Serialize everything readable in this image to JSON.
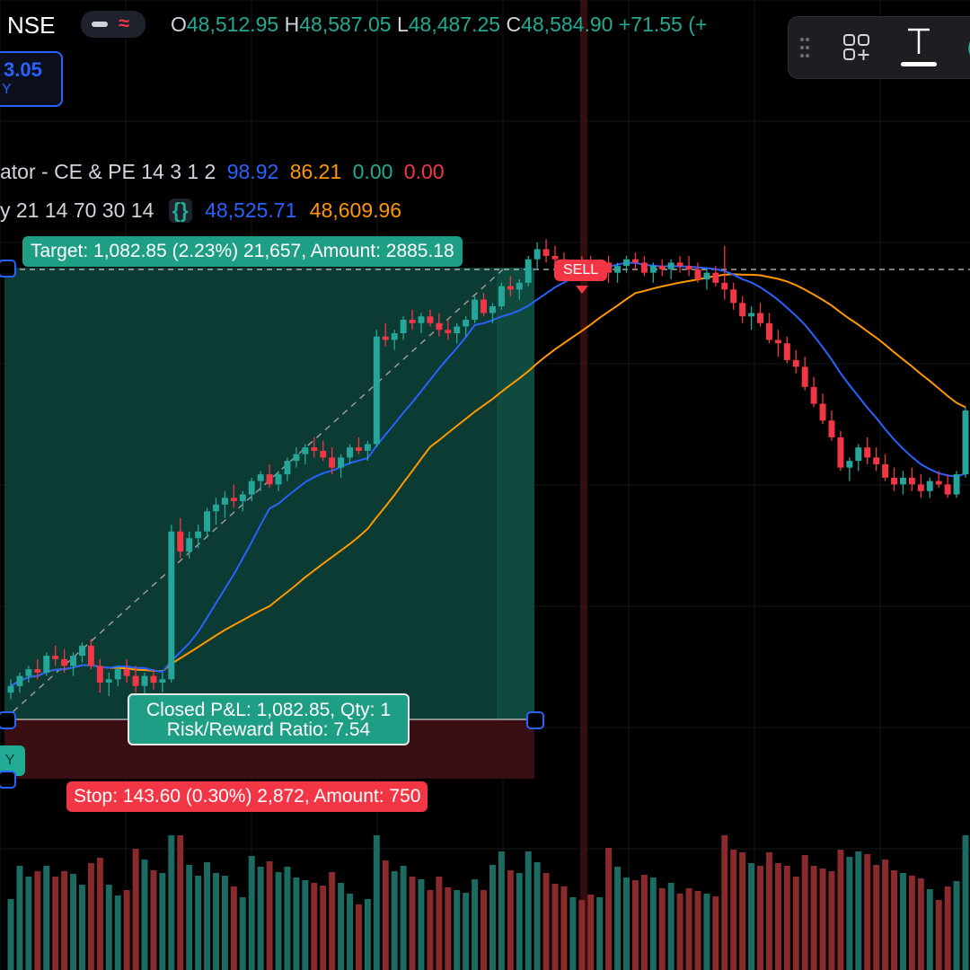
{
  "header": {
    "exchange": "NSE",
    "ohlc": [
      {
        "key": "O",
        "value": "48,512.95"
      },
      {
        "key": "H",
        "value": "48,587.05"
      },
      {
        "key": "L",
        "value": "48,487.25"
      },
      {
        "key": "C",
        "value": "48,584.90"
      }
    ],
    "change": "+71.55 (+",
    "price_tag_value": "3.05",
    "price_tag_sub": "Y"
  },
  "indicators": {
    "line1_name": "ator - CE & PE 14 3 1 2",
    "line1_values": [
      "98.92",
      "86.21",
      "0.00",
      "0.00"
    ],
    "line2_name": "y 21 14 70 30 14",
    "line2_braces": "{}",
    "line2_values": [
      "48,525.71",
      "48,609.96"
    ]
  },
  "colors": {
    "up": "#26a69a",
    "down": "#f23645",
    "blue": "#2962ff",
    "orange": "#ff9800",
    "green_value": "#22ab94",
    "red_value": "#f23645",
    "target_fill": "#0b3b32",
    "stop_fill": "#3a0f14"
  },
  "icons": [
    "drag-handle-icon",
    "add-layout-icon",
    "text-tool-icon",
    "chart-wave-icon",
    "fire-icon"
  ],
  "position": {
    "target_label": "Target: 1,082.85 (2.23%) 21,657, Amount: 2885.18",
    "pnl_label_line1": "Closed P&L: 1,082.85, Qty: 1",
    "pnl_label_line2": "Risk/Reward Ratio: 7.54",
    "stop_label": "Stop: 143.60 (0.30%) 2,872, Amount: 750",
    "buy_marker": "Y",
    "sell_marker": "SELL"
  },
  "chart_data": {
    "type": "candlestick",
    "symbol_exchange": "NSE",
    "series": [
      {
        "name": "price",
        "kind": "candles",
        "candles": [
          [
            47300,
            47340,
            47280,
            47320
          ],
          [
            47320,
            47360,
            47300,
            47350
          ],
          [
            47350,
            47380,
            47330,
            47370
          ],
          [
            47370,
            47400,
            47340,
            47360
          ],
          [
            47360,
            47420,
            47350,
            47410
          ],
          [
            47410,
            47440,
            47380,
            47400
          ],
          [
            47400,
            47430,
            47360,
            47380
          ],
          [
            47380,
            47420,
            47350,
            47410
          ],
          [
            47410,
            47450,
            47390,
            47440
          ],
          [
            47440,
            47460,
            47370,
            47380
          ],
          [
            47380,
            47400,
            47300,
            47330
          ],
          [
            47330,
            47360,
            47290,
            47340
          ],
          [
            47340,
            47380,
            47320,
            47370
          ],
          [
            47370,
            47400,
            47330,
            47350
          ],
          [
            47350,
            47380,
            47300,
            47320
          ],
          [
            47320,
            47360,
            47290,
            47350
          ],
          [
            47350,
            47370,
            47310,
            47330
          ],
          [
            47330,
            47360,
            47300,
            47340
          ],
          [
            47340,
            47800,
            47330,
            47780
          ],
          [
            47780,
            47820,
            47700,
            47720
          ],
          [
            47720,
            47780,
            47700,
            47760
          ],
          [
            47760,
            47800,
            47730,
            47780
          ],
          [
            47780,
            47850,
            47760,
            47840
          ],
          [
            47840,
            47880,
            47800,
            47860
          ],
          [
            47860,
            47900,
            47820,
            47880
          ],
          [
            47880,
            47920,
            47850,
            47870
          ],
          [
            47870,
            47900,
            47840,
            47890
          ],
          [
            47890,
            47940,
            47870,
            47930
          ],
          [
            47930,
            47960,
            47900,
            47950
          ],
          [
            47950,
            47980,
            47910,
            47920
          ],
          [
            47920,
            47960,
            47900,
            47950
          ],
          [
            47950,
            48000,
            47930,
            47990
          ],
          [
            47990,
            48030,
            47970,
            48010
          ],
          [
            48010,
            48040,
            47980,
            48030
          ],
          [
            48030,
            48060,
            48000,
            48020
          ],
          [
            48020,
            48050,
            47990,
            48000
          ],
          [
            48000,
            48030,
            47950,
            47970
          ],
          [
            47970,
            48010,
            47940,
            48000
          ],
          [
            48000,
            48040,
            47980,
            48030
          ],
          [
            48030,
            48060,
            48010,
            48020
          ],
          [
            48020,
            48050,
            47990,
            48040
          ],
          [
            48040,
            48380,
            48030,
            48360
          ],
          [
            48360,
            48400,
            48330,
            48350
          ],
          [
            48350,
            48380,
            48320,
            48370
          ],
          [
            48370,
            48420,
            48350,
            48410
          ],
          [
            48410,
            48440,
            48380,
            48400
          ],
          [
            48400,
            48430,
            48370,
            48420
          ],
          [
            48420,
            48440,
            48390,
            48400
          ],
          [
            48400,
            48430,
            48360,
            48380
          ],
          [
            48380,
            48410,
            48350,
            48370
          ],
          [
            48370,
            48400,
            48340,
            48390
          ],
          [
            48390,
            48420,
            48360,
            48410
          ],
          [
            48410,
            48480,
            48400,
            48470
          ],
          [
            48470,
            48490,
            48420,
            48430
          ],
          [
            48430,
            48460,
            48400,
            48450
          ],
          [
            48450,
            48520,
            48440,
            48510
          ],
          [
            48510,
            48540,
            48480,
            48500
          ],
          [
            48500,
            48530,
            48470,
            48520
          ],
          [
            48520,
            48600,
            48510,
            48590
          ],
          [
            48590,
            48640,
            48560,
            48620
          ],
          [
            48620,
            48650,
            48580,
            48600
          ],
          [
            48600,
            48630,
            48570,
            48590
          ],
          [
            48590,
            48610,
            48550,
            48560
          ],
          [
            48560,
            48590,
            48540,
            48580
          ],
          [
            48580,
            48600,
            48550,
            48570
          ],
          [
            48570,
            48600,
            48540,
            48560
          ],
          [
            48560,
            48590,
            48530,
            48580
          ],
          [
            48580,
            48600,
            48520,
            48550
          ],
          [
            48550,
            48580,
            48520,
            48570
          ],
          [
            48570,
            48600,
            48550,
            48590
          ],
          [
            48590,
            48610,
            48560,
            48580
          ],
          [
            48580,
            48600,
            48540,
            48550
          ],
          [
            48550,
            48580,
            48520,
            48570
          ],
          [
            48570,
            48590,
            48540,
            48560
          ],
          [
            48560,
            48590,
            48530,
            48580
          ],
          [
            48580,
            48600,
            48550,
            48570
          ],
          [
            48570,
            48600,
            48540,
            48560
          ],
          [
            48560,
            48580,
            48520,
            48530
          ],
          [
            48530,
            48560,
            48500,
            48550
          ],
          [
            48550,
            48570,
            48510,
            48520
          ],
          [
            48520,
            48630,
            48470,
            48500
          ],
          [
            48500,
            48520,
            48440,
            48460
          ],
          [
            48460,
            48480,
            48400,
            48420
          ],
          [
            48420,
            48450,
            48380,
            48430
          ],
          [
            48430,
            48460,
            48390,
            48400
          ],
          [
            48400,
            48430,
            48340,
            48350
          ],
          [
            48350,
            48380,
            48300,
            48340
          ],
          [
            48340,
            48360,
            48280,
            48290
          ],
          [
            48290,
            48320,
            48250,
            48270
          ],
          [
            48270,
            48300,
            48200,
            48210
          ],
          [
            48210,
            48240,
            48150,
            48160
          ],
          [
            48160,
            48190,
            48100,
            48110
          ],
          [
            48110,
            48140,
            48050,
            48060
          ],
          [
            48060,
            48080,
            47960,
            47970
          ],
          [
            47970,
            48000,
            47930,
            47990
          ],
          [
            47990,
            48040,
            47960,
            48030
          ],
          [
            48030,
            48060,
            47980,
            48000
          ],
          [
            48000,
            48030,
            47960,
            47980
          ],
          [
            47980,
            48010,
            47930,
            47940
          ],
          [
            47940,
            47970,
            47900,
            47920
          ],
          [
            47920,
            47960,
            47890,
            47940
          ],
          [
            47940,
            47970,
            47900,
            47920
          ],
          [
            47920,
            47950,
            47880,
            47900
          ],
          [
            47900,
            47940,
            47880,
            47930
          ],
          [
            47930,
            47960,
            47910,
            47920
          ],
          [
            47920,
            47950,
            47880,
            47890
          ],
          [
            47890,
            47960,
            47880,
            47950
          ],
          [
            47950,
            48150,
            47940,
            48140
          ]
        ]
      },
      {
        "name": "blue-ma",
        "kind": "line",
        "color": "#2962ff"
      },
      {
        "name": "orange-ma",
        "kind": "line",
        "color": "#ff9800"
      }
    ],
    "annotations": [
      "Target: 1,082.85 (2.23%) 21,657, Amount: 2885.18",
      "Closed P&L: 1,082.85, Qty: 1",
      "Risk/Reward Ratio: 7.54",
      "Stop: 143.60 (0.30%) 2,872, Amount: 750",
      "SELL"
    ],
    "grid": true,
    "volume": true
  }
}
